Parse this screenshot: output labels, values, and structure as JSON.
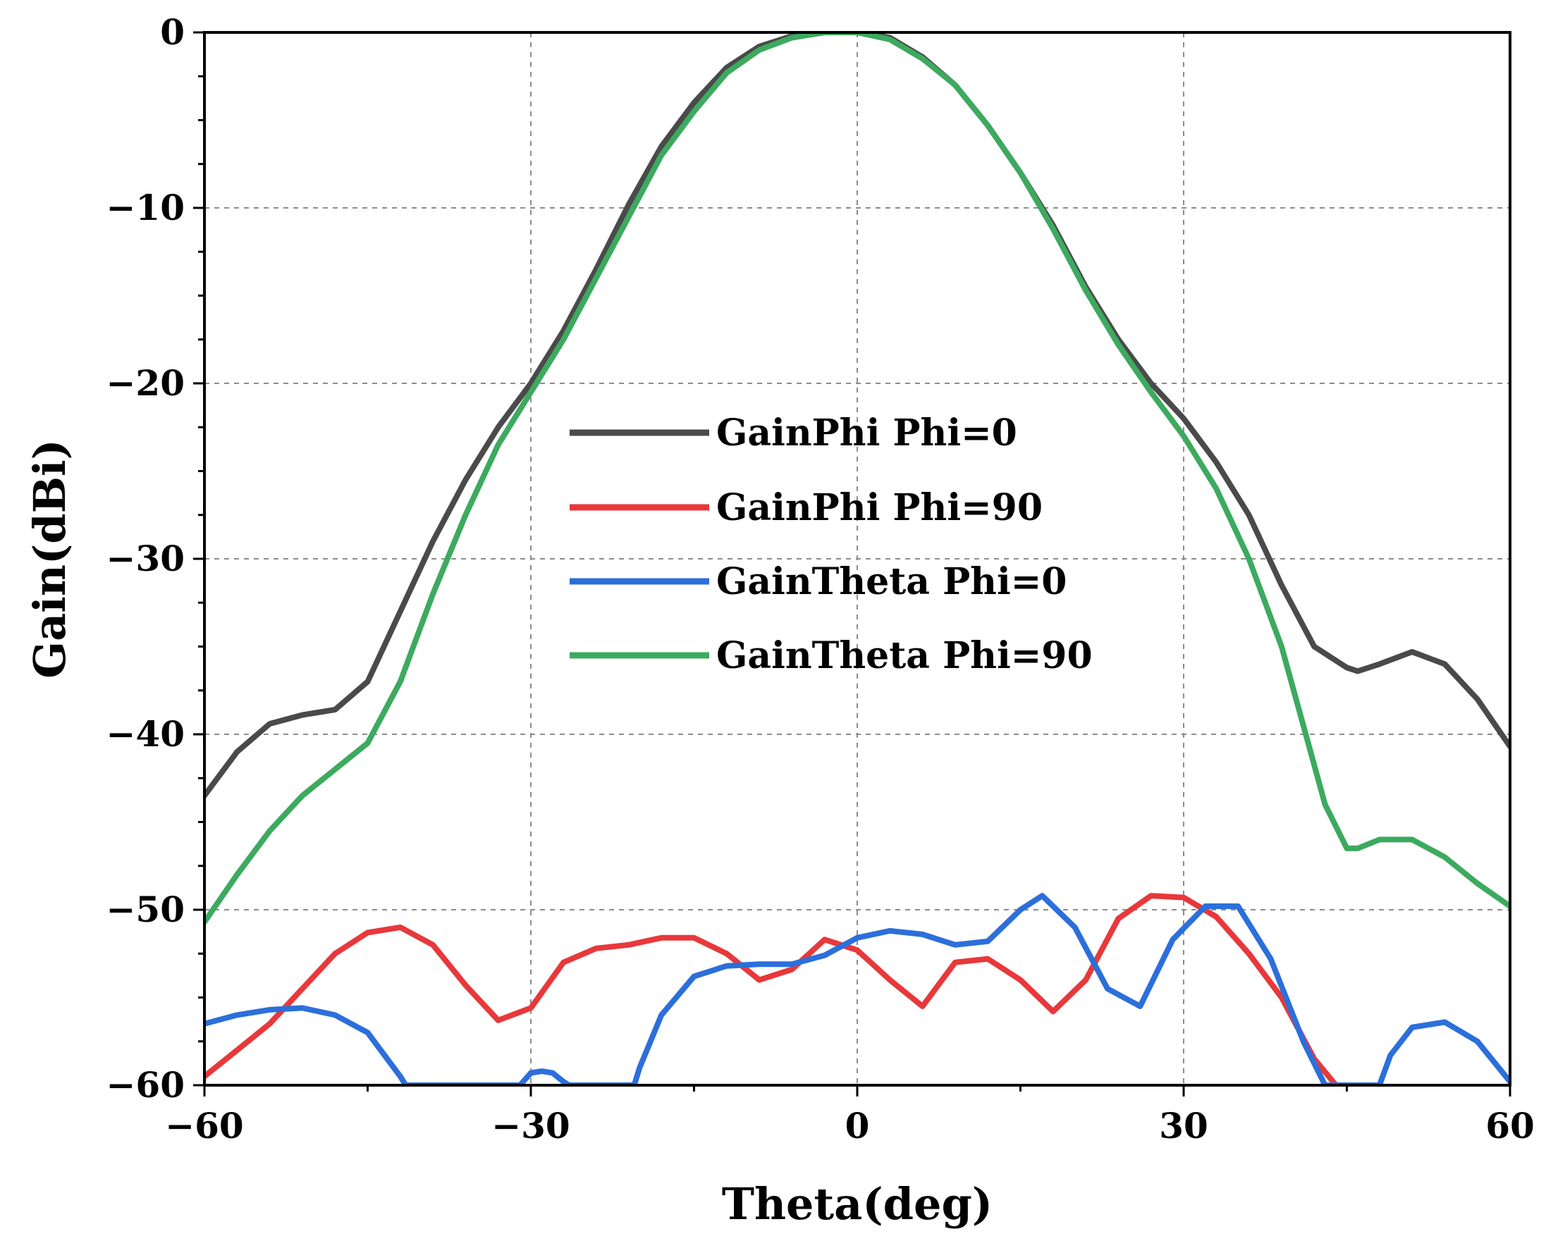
{
  "chart_data": {
    "type": "line",
    "title": "",
    "xlabel": "Theta(deg)",
    "ylabel": "Gain(dBi)",
    "xlim": [
      -60,
      60
    ],
    "ylim": [
      -60,
      0
    ],
    "xticks": [
      -60,
      -30,
      0,
      30,
      60
    ],
    "xtick_labels": [
      "−60",
      "−30",
      "0",
      "30",
      "60"
    ],
    "yticks": [
      0,
      -10,
      -20,
      -30,
      -40,
      -50,
      -60
    ],
    "ytick_labels": [
      "0",
      "−10",
      "−20",
      "−30",
      "−40",
      "−50",
      "−60"
    ],
    "grid": true,
    "legend_position": "center",
    "series": [
      {
        "name": "GainPhi Phi=0",
        "color": "#4a4a4a",
        "x": [
          -60,
          -57,
          -54,
          -51,
          -48,
          -45,
          -42,
          -39,
          -36,
          -33,
          -30,
          -27,
          -24,
          -21,
          -18,
          -15,
          -12,
          -9,
          -6,
          -3,
          0,
          3,
          6,
          9,
          12,
          15,
          18,
          21,
          24,
          27,
          30,
          33,
          36,
          39,
          42,
          45,
          46,
          48,
          51,
          54,
          57,
          60
        ],
        "y": [
          -43.5,
          -41,
          -39.4,
          -38.9,
          -38.6,
          -37,
          -33,
          -29,
          -25.5,
          -22.5,
          -20,
          -17,
          -13.5,
          -9.8,
          -6.5,
          -4,
          -2,
          -0.8,
          -0.2,
          0,
          0,
          -0.3,
          -1.4,
          -3,
          -5.3,
          -8,
          -11,
          -14.5,
          -17.5,
          -20,
          -22,
          -24.5,
          -27.5,
          -31.5,
          -35,
          -36.2,
          -36.4,
          -36,
          -35.3,
          -36,
          -38,
          -40.7
        ]
      },
      {
        "name": "GainPhi Phi=90",
        "color": "#e8383b",
        "x": [
          -60,
          -57,
          -54,
          -51,
          -48,
          -45,
          -42,
          -39,
          -36,
          -33,
          -30,
          -27,
          -24,
          -21,
          -18,
          -15,
          -12,
          -9,
          -6,
          -3,
          0,
          3,
          6,
          9,
          12,
          15,
          18,
          21,
          24,
          27,
          30,
          33,
          36,
          39,
          42,
          44
        ],
        "y": [
          -59.5,
          -58,
          -56.5,
          -54.5,
          -52.5,
          -51.3,
          -51,
          -52,
          -54.3,
          -56.3,
          -55.6,
          -53,
          -52.2,
          -52,
          -51.6,
          -51.6,
          -52.5,
          -54,
          -53.4,
          -51.7,
          -52.3,
          -54,
          -55.5,
          -53,
          -52.8,
          -54,
          -55.8,
          -54,
          -50.5,
          -49.2,
          -49.3,
          -50.4,
          -52.5,
          -55,
          -58.5,
          -60
        ]
      },
      {
        "name": "GainTheta Phi=0",
        "color": "#2c6fdb",
        "x": [
          -60,
          -57,
          -54,
          -51,
          -48,
          -45,
          -42,
          -41.5,
          -31,
          -30,
          -29,
          -28,
          -27,
          -26.5,
          -20.5,
          -20,
          -18,
          -15,
          -12,
          -9,
          -6,
          -3,
          0,
          3,
          6,
          9,
          12,
          15,
          17,
          20,
          23,
          26,
          29,
          32,
          35,
          38,
          41,
          43,
          48,
          49,
          51,
          54,
          57,
          60
        ],
        "y": [
          -56.5,
          -56,
          -55.7,
          -55.6,
          -56,
          -57,
          -59.5,
          -60,
          -60,
          -59.3,
          -59.2,
          -59.3,
          -59.8,
          -60,
          -60,
          -59,
          -56,
          -53.8,
          -53.2,
          -53.1,
          -53.1,
          -52.6,
          -51.6,
          -51.2,
          -51.4,
          -52,
          -51.8,
          -50,
          -49.2,
          -51,
          -54.5,
          -55.5,
          -51.7,
          -49.8,
          -49.8,
          -52.8,
          -57.5,
          -60,
          -60,
          -58.3,
          -56.7,
          -56.4,
          -57.5,
          -59.8
        ]
      },
      {
        "name": "GainTheta Phi=90",
        "color": "#3caa5f",
        "x": [
          -60,
          -57,
          -54,
          -51,
          -48,
          -45,
          -42,
          -39,
          -36,
          -33,
          -30,
          -27,
          -24,
          -21,
          -18,
          -15,
          -12,
          -9,
          -6,
          -3,
          0,
          3,
          6,
          9,
          12,
          15,
          18,
          21,
          24,
          27,
          30,
          33,
          36,
          39,
          41,
          43,
          45,
          46,
          48,
          51,
          54,
          57,
          60
        ],
        "y": [
          -50.7,
          -48,
          -45.5,
          -43.5,
          -42,
          -40.5,
          -37,
          -32,
          -27.5,
          -23.5,
          -20.5,
          -17.5,
          -14,
          -10.5,
          -7,
          -4.5,
          -2.3,
          -1,
          -0.3,
          0,
          0,
          -0.4,
          -1.5,
          -3,
          -5.3,
          -8,
          -11.2,
          -14.7,
          -17.8,
          -20.5,
          -23,
          -26,
          -30,
          -35,
          -39.5,
          -44,
          -46.5,
          -46.5,
          -46,
          -46,
          -47,
          -48.5,
          -49.8
        ]
      }
    ]
  }
}
